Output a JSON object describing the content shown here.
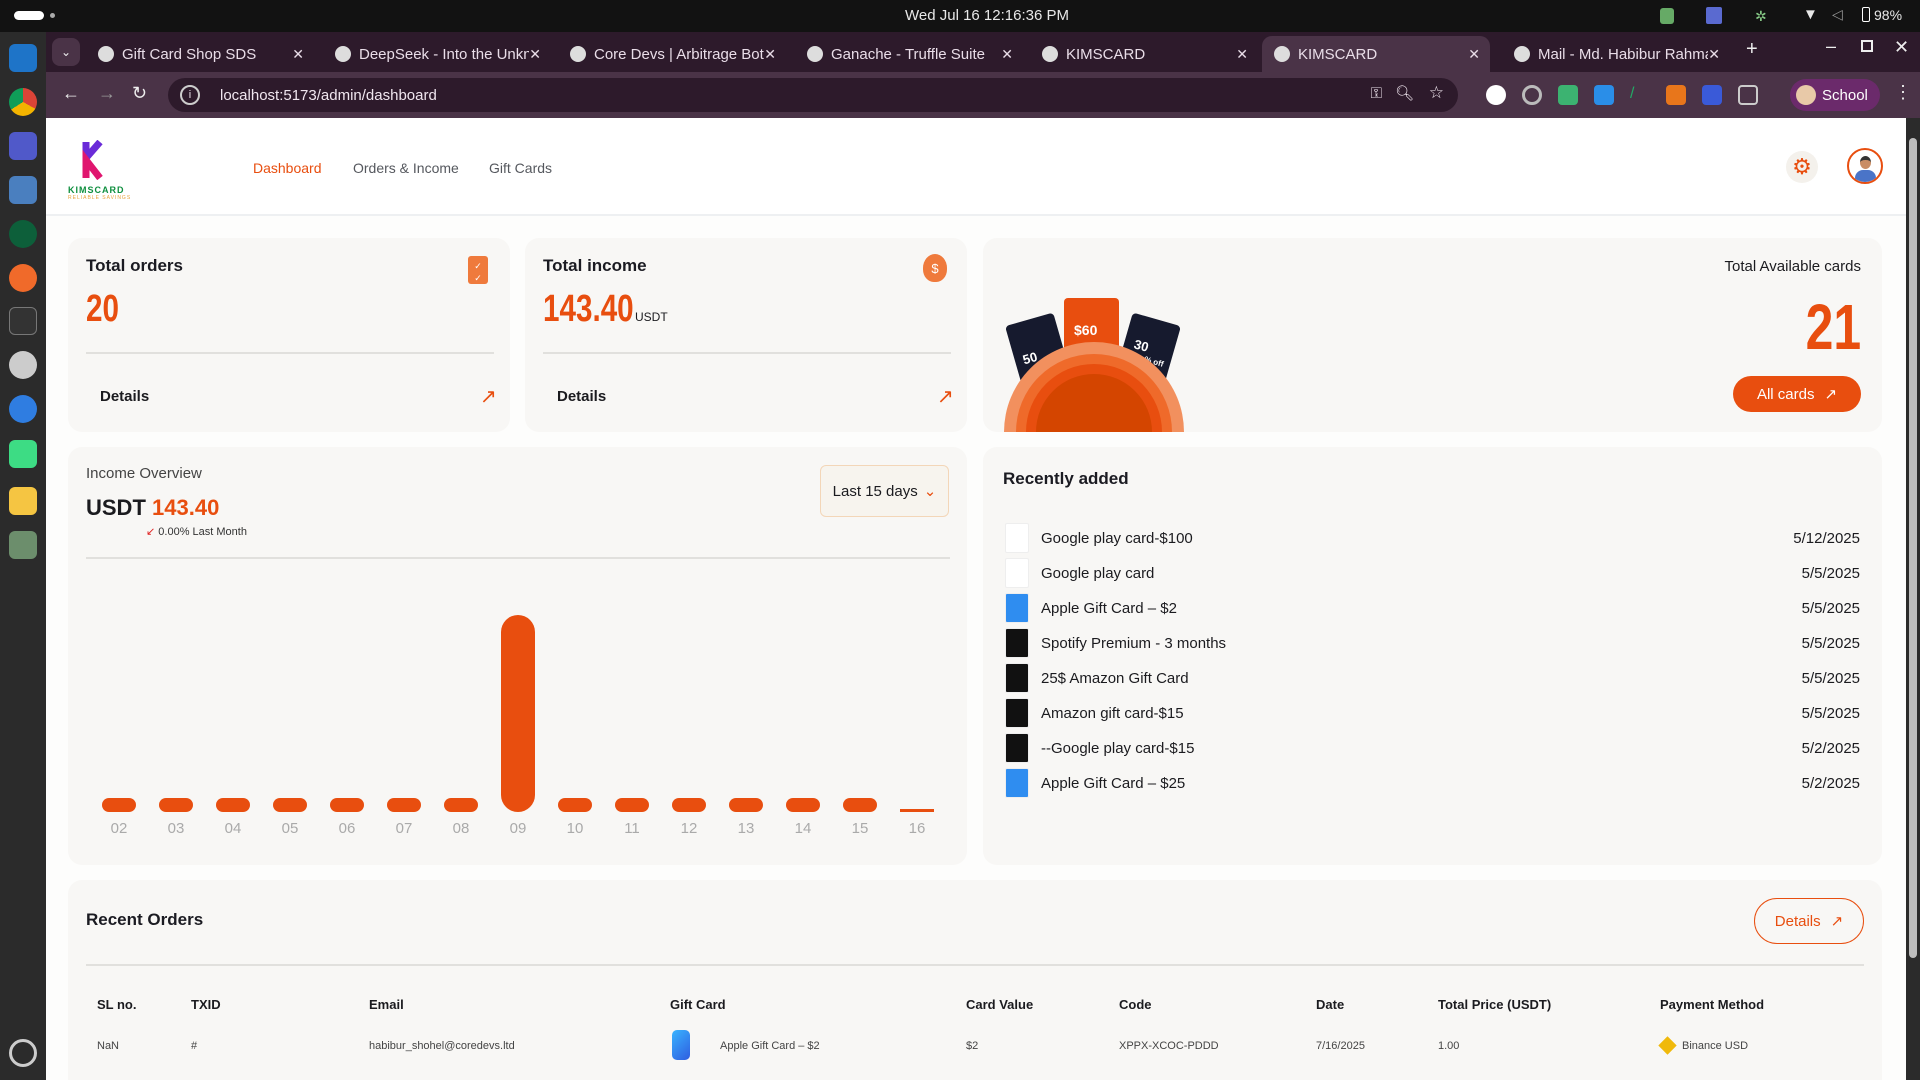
{
  "system": {
    "datetime": "Wed Jul 16  12:16:36 PM",
    "battery": "98%"
  },
  "browser": {
    "tabs": [
      {
        "title": "Gift Card Shop SDS",
        "active": false
      },
      {
        "title": "DeepSeek - Into the Unknown",
        "active": false
      },
      {
        "title": "Core Devs | Arbitrage Bot",
        "active": false
      },
      {
        "title": "Ganache - Truffle Suite",
        "active": false
      },
      {
        "title": "KIMSCARD",
        "active": false
      },
      {
        "title": "KIMSCARD",
        "active": true
      },
      {
        "title": "Mail - Md. Habibur Rahman",
        "active": false
      }
    ],
    "url": "localhost:5173/admin/dashboard",
    "profile": "School"
  },
  "brand": {
    "name": "KIMSCARD",
    "tagline": "RELIABLE SAVINGS"
  },
  "nav": {
    "items": [
      "Dashboard",
      "Orders & Income",
      "Gift Cards"
    ],
    "active": "Dashboard"
  },
  "colors": {
    "accent": "#e84e0f"
  },
  "stats": {
    "orders": {
      "title": "Total orders",
      "value": "20",
      "details": "Details"
    },
    "income": {
      "title": "Total income",
      "value": "143.40",
      "unit": "USDT",
      "details": "Details"
    },
    "cards": {
      "title": "Total Available cards",
      "value": "21",
      "button": "All cards",
      "promo": [
        "50",
        "$60",
        "30"
      ],
      "promo_suffix": "% off"
    }
  },
  "income_overview": {
    "title": "Income Overview",
    "currency": "USDT",
    "amount": "143.40",
    "change": "0.00% Last Month",
    "range": "Last 15 days"
  },
  "chart_data": {
    "type": "bar",
    "title": "Income Overview",
    "xlabel": "",
    "ylabel": "USDT",
    "categories": [
      "02",
      "03",
      "04",
      "05",
      "06",
      "07",
      "08",
      "09",
      "10",
      "11",
      "12",
      "13",
      "14",
      "15",
      "16"
    ],
    "values": [
      0,
      0,
      0,
      0,
      0,
      0,
      0,
      143.4,
      0,
      0,
      0,
      0,
      0,
      0,
      0
    ],
    "ylim": [
      0,
      143.4
    ]
  },
  "recently_added": {
    "title": "Recently added",
    "items": [
      {
        "name": "Google play card-$100",
        "date": "5/12/2025",
        "icon": "google-play"
      },
      {
        "name": "Google play card",
        "date": "5/5/2025",
        "icon": "google-play"
      },
      {
        "name": "Apple Gift Card – $2",
        "date": "5/5/2025",
        "icon": "apple"
      },
      {
        "name": "Spotify Premium - 3 months",
        "date": "5/5/2025",
        "icon": "spotify"
      },
      {
        "name": "25$ Amazon Gift Card",
        "date": "5/5/2025",
        "icon": "amazon"
      },
      {
        "name": "Amazon gift card-$15",
        "date": "5/5/2025",
        "icon": "amazon"
      },
      {
        "name": "--Google play card-$15",
        "date": "5/2/2025",
        "icon": "google-play-dark"
      },
      {
        "name": "Apple Gift Card – $25",
        "date": "5/2/2025",
        "icon": "apple"
      }
    ]
  },
  "recent_orders": {
    "title": "Recent Orders",
    "details": "Details",
    "columns": [
      "SL no.",
      "TXID",
      "Email",
      "Gift Card",
      "Card Value",
      "Code",
      "Date",
      "Total Price (USDT)",
      "Payment Method"
    ],
    "rows": [
      {
        "sl": "NaN",
        "txid": "#",
        "email": "habibur_shohel@coredevs.ltd",
        "gift_card": "Apple Gift Card – $2",
        "card_value": "$2",
        "code": "XPPX-XCOC-PDDD",
        "date": "7/16/2025",
        "total": "1.00",
        "payment": "Binance USD"
      }
    ]
  }
}
